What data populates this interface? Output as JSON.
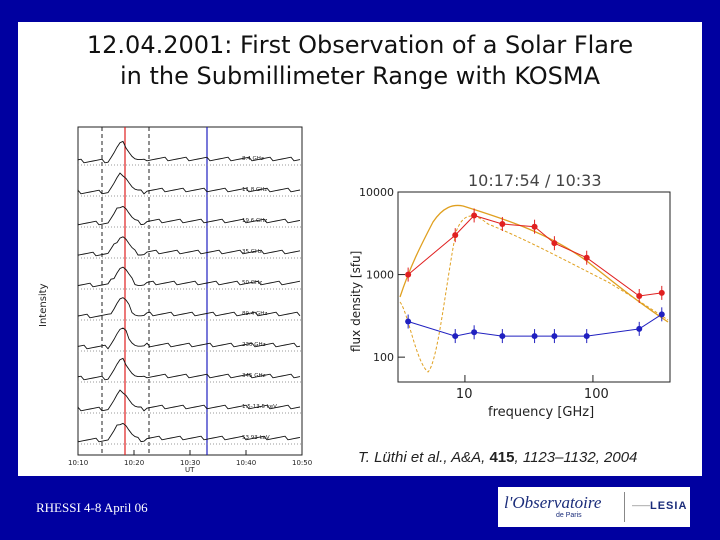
{
  "title": {
    "line1": "12.04.2001: First Observation of a Solar Flare",
    "line2": "in the Submillimeter Range with KOSMA"
  },
  "left_plot": {
    "ylabel": "Intensity",
    "xlabel": "UT",
    "x_ticks": [
      "10:10",
      "10:20",
      "10:30",
      "10:40",
      "10:50"
    ],
    "channels": [
      "8.4 GHz",
      "11.8 GHz",
      "19.6 GHz",
      "35 GHz",
      "50 GHz",
      "89.4 GHz",
      "230 GHz",
      "345 GHz",
      "1.5-13.5 keV",
      "53 93 keV"
    ]
  },
  "chart_data": {
    "type": "scatter",
    "title": "10:17:54 / 10:33",
    "xlabel": "frequency [GHz]",
    "ylabel": "flux density [sfu]",
    "xscale": "log",
    "yscale": "log",
    "xlim": [
      3,
      400
    ],
    "ylim": [
      50,
      10000
    ],
    "x_ticks": [
      "10",
      "100"
    ],
    "y_ticks": [
      "10000",
      "1000",
      "100"
    ],
    "series": [
      {
        "name": "10:17:54",
        "color": "#e02020",
        "x": [
          3.6,
          8.4,
          11.8,
          19.6,
          35,
          50,
          89.4,
          230,
          345
        ],
        "y": [
          1000,
          3000,
          5200,
          4100,
          3800,
          2400,
          1600,
          550,
          600
        ]
      },
      {
        "name": "10:33",
        "color": "#2020c0",
        "x": [
          3.6,
          8.4,
          11.8,
          19.6,
          35,
          50,
          89.4,
          230,
          345
        ],
        "y": [
          270,
          180,
          200,
          180,
          180,
          180,
          180,
          220,
          330
        ]
      }
    ]
  },
  "citation": {
    "authors": "T. Lüthi et al., A&A, ",
    "volume": "415",
    "pages": ", 1123–1132, 2004"
  },
  "footer": "RHESSI 4-8 April 06",
  "logo": {
    "name": "l'Observatoire",
    "sub": "de Paris",
    "dash": "——",
    "lab": "LESIA"
  },
  "colors": {
    "background": "#0000a0",
    "red": "#e02020",
    "blue": "#2020c0",
    "fit": "#e0a020"
  }
}
